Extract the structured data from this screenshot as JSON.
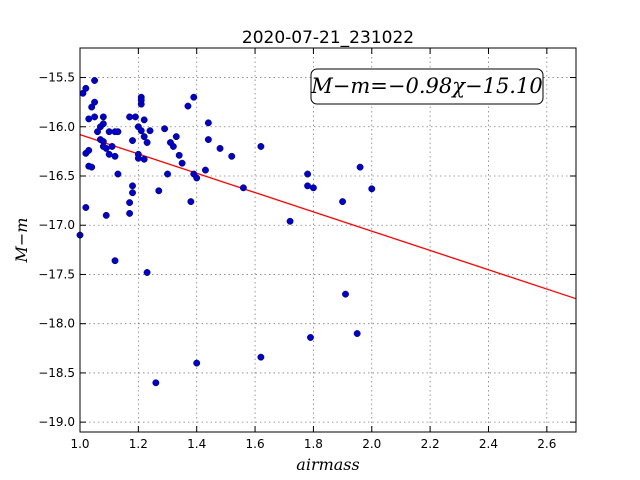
{
  "chart_data": {
    "type": "scatter",
    "title": "2020-07-21_231022",
    "xlabel": "airmass",
    "ylabel": "M−m",
    "xlim": [
      1.0,
      2.7
    ],
    "ylim": [
      -19.1,
      -15.2
    ],
    "y_inverted_display": true,
    "x_ticks": [
      1.0,
      1.2,
      1.4,
      1.6,
      1.8,
      2.0,
      2.2,
      2.4,
      2.6
    ],
    "x_tick_labels": [
      "1.0",
      "1.2",
      "1.4",
      "1.6",
      "1.8",
      "2.0",
      "2.2",
      "2.4",
      "2.6"
    ],
    "y_ticks": [
      -15.5,
      -16.0,
      -16.5,
      -17.0,
      -17.5,
      -18.0,
      -18.5,
      -19.0
    ],
    "y_tick_labels": [
      "−15.5",
      "−16.0",
      "−16.5",
      "−17.0",
      "−17.5",
      "−18.0",
      "−18.5",
      "−19.0"
    ],
    "grid": true,
    "annotation": "M−m=−0.98χ−15.10",
    "annotation_placement": "top-right",
    "fit_line": {
      "slope": -0.98,
      "intercept": -15.1,
      "color": "#ff0000"
    },
    "point_color": "#0000cc",
    "points": [
      [
        1.0,
        -17.1
      ],
      [
        1.01,
        -15.66
      ],
      [
        1.02,
        -16.82
      ],
      [
        1.02,
        -16.27
      ],
      [
        1.02,
        -15.61
      ],
      [
        1.03,
        -15.92
      ],
      [
        1.03,
        -16.24
      ],
      [
        1.03,
        -16.4
      ],
      [
        1.04,
        -15.8
      ],
      [
        1.04,
        -16.41
      ],
      [
        1.05,
        -15.53
      ],
      [
        1.05,
        -15.9
      ],
      [
        1.05,
        -15.75
      ],
      [
        1.06,
        -16.05
      ],
      [
        1.07,
        -16.0
      ],
      [
        1.07,
        -16.13
      ],
      [
        1.08,
        -16.15
      ],
      [
        1.08,
        -16.2
      ],
      [
        1.08,
        -15.9
      ],
      [
        1.08,
        -15.97
      ],
      [
        1.09,
        -16.22
      ],
      [
        1.09,
        -16.9
      ],
      [
        1.1,
        -16.28
      ],
      [
        1.1,
        -16.05
      ],
      [
        1.11,
        -16.2
      ],
      [
        1.12,
        -16.05
      ],
      [
        1.12,
        -16.3
      ],
      [
        1.12,
        -17.36
      ],
      [
        1.13,
        -16.05
      ],
      [
        1.13,
        -16.48
      ],
      [
        1.17,
        -16.77
      ],
      [
        1.17,
        -15.9
      ],
      [
        1.17,
        -16.88
      ],
      [
        1.18,
        -16.6
      ],
      [
        1.18,
        -16.14
      ],
      [
        1.18,
        -16.67
      ],
      [
        1.19,
        -15.9
      ],
      [
        1.2,
        -16.28
      ],
      [
        1.2,
        -16.32
      ],
      [
        1.2,
        -16.0
      ],
      [
        1.21,
        -15.7
      ],
      [
        1.21,
        -15.77
      ],
      [
        1.21,
        -15.73
      ],
      [
        1.21,
        -16.04
      ],
      [
        1.22,
        -16.1
      ],
      [
        1.22,
        -16.33
      ],
      [
        1.22,
        -15.93
      ],
      [
        1.23,
        -16.16
      ],
      [
        1.23,
        -17.48
      ],
      [
        1.24,
        -16.04
      ],
      [
        1.26,
        -18.6
      ],
      [
        1.27,
        -16.65
      ],
      [
        1.29,
        -16.02
      ],
      [
        1.3,
        -16.48
      ],
      [
        1.31,
        -16.16
      ],
      [
        1.32,
        -16.2
      ],
      [
        1.33,
        -16.1
      ],
      [
        1.34,
        -16.29
      ],
      [
        1.35,
        -16.37
      ],
      [
        1.37,
        -15.79
      ],
      [
        1.38,
        -16.76
      ],
      [
        1.39,
        -15.7
      ],
      [
        1.39,
        -16.48
      ],
      [
        1.4,
        -16.52
      ],
      [
        1.4,
        -18.4
      ],
      [
        1.43,
        -16.44
      ],
      [
        1.44,
        -16.13
      ],
      [
        1.44,
        -15.96
      ],
      [
        1.48,
        -16.22
      ],
      [
        1.52,
        -16.3
      ],
      [
        1.56,
        -16.62
      ],
      [
        1.62,
        -16.2
      ],
      [
        1.62,
        -18.34
      ],
      [
        1.72,
        -16.96
      ],
      [
        1.78,
        -16.48
      ],
      [
        1.78,
        -16.6
      ],
      [
        1.79,
        -18.14
      ],
      [
        1.8,
        -16.62
      ],
      [
        1.9,
        -16.76
      ],
      [
        1.91,
        -17.7
      ],
      [
        1.95,
        -18.1
      ],
      [
        1.96,
        -16.41
      ],
      [
        2.0,
        -16.63
      ]
    ]
  }
}
